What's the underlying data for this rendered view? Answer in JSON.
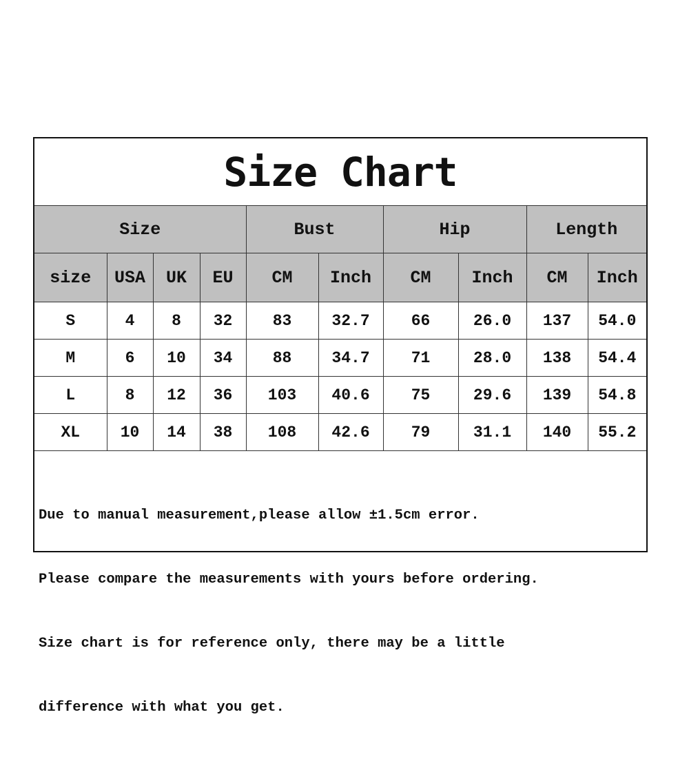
{
  "title": "Size Chart",
  "group_headers": [
    "Size",
    "Bust",
    "Hip",
    "Length"
  ],
  "sub_headers": [
    "size",
    "USA",
    "UK",
    "EU",
    "CM",
    "Inch",
    "CM",
    "Inch",
    "CM",
    "Inch"
  ],
  "rows": [
    [
      "S",
      "4",
      "8",
      "32",
      "83",
      "32.7",
      "66",
      "26.0",
      "137",
      "54.0"
    ],
    [
      "M",
      "6",
      "10",
      "34",
      "88",
      "34.7",
      "71",
      "28.0",
      "138",
      "54.4"
    ],
    [
      "L",
      "8",
      "12",
      "36",
      "103",
      "40.6",
      "75",
      "29.6",
      "139",
      "54.8"
    ],
    [
      "XL",
      "10",
      "14",
      "38",
      "108",
      "42.6",
      "79",
      "31.1",
      "140",
      "55.2"
    ]
  ],
  "notes": [
    "Due to manual measurement,please allow ±1.5cm error.",
    "Please compare the measurements with yours before ordering.",
    "Size chart is for reference only, there may be a little",
    "difference with what you get."
  ],
  "colors": {
    "header_bg": "#c0c0c0",
    "border": "#333333"
  }
}
